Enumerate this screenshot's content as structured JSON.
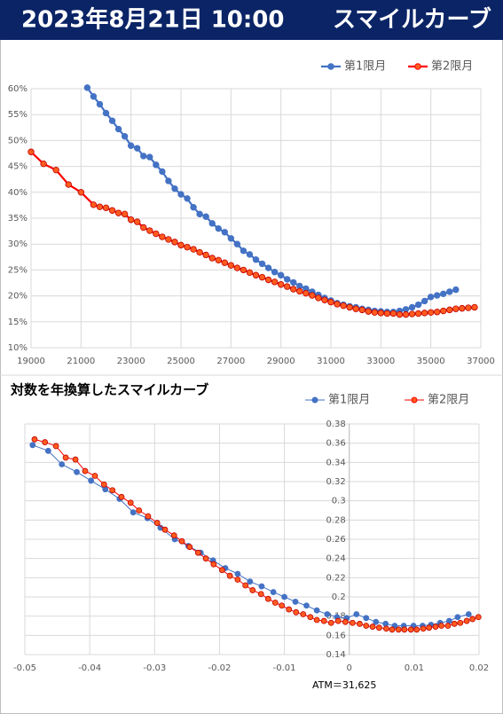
{
  "header": {
    "date": "2023年8月21日 10:00",
    "title": "スマイルカーブ"
  },
  "chart_data": [
    {
      "type": "line",
      "xlim": [
        19000,
        37000
      ],
      "xticks": [
        19000,
        21000,
        23000,
        25000,
        27000,
        29000,
        31000,
        33000,
        35000,
        37000
      ],
      "ylim": [
        10,
        60
      ],
      "yticks": [
        {
          "value": 10,
          "label": "10%"
        },
        {
          "value": 15,
          "label": "15%"
        },
        {
          "value": 20,
          "label": "20%"
        },
        {
          "value": 25,
          "label": "25%"
        },
        {
          "value": 30,
          "label": "30%"
        },
        {
          "value": 35,
          "label": "35%"
        },
        {
          "value": 40,
          "label": "40%"
        },
        {
          "value": 45,
          "label": "45%"
        },
        {
          "value": 50,
          "label": "50%"
        },
        {
          "value": 55,
          "label": "55%"
        },
        {
          "value": 60,
          "label": "60%"
        }
      ],
      "grid": true,
      "legend": "top-right",
      "series": [
        {
          "name": "第1限月",
          "color": "#4472c4",
          "marker_color": "#4472c4",
          "x": [
            21250,
            21500,
            21750,
            22000,
            22250,
            22500,
            22750,
            23000,
            23250,
            23500,
            23750,
            24000,
            24250,
            24500,
            24750,
            25000,
            25250,
            25500,
            25750,
            26000,
            26250,
            26500,
            26750,
            27000,
            27250,
            27500,
            27750,
            28000,
            28250,
            28500,
            28750,
            29000,
            29250,
            29500,
            29750,
            30000,
            30250,
            30500,
            30750,
            31000,
            31250,
            31500,
            31750,
            32000,
            32250,
            32500,
            32750,
            33000,
            33250,
            33500,
            33750,
            34000,
            34250,
            34500,
            34750,
            35000,
            35250,
            35500,
            35750,
            36000
          ],
          "values": [
            60.2,
            58.5,
            57,
            55.3,
            53.8,
            52.2,
            50.8,
            49,
            48.5,
            47,
            46.8,
            45.3,
            44,
            42.2,
            40.7,
            39.6,
            38.8,
            37.1,
            35.8,
            35.3,
            34,
            33,
            32.3,
            31.1,
            30,
            28.7,
            28,
            27,
            26.2,
            25.4,
            24.6,
            24,
            23.2,
            22.6,
            21.9,
            21.4,
            20.8,
            20.2,
            19.6,
            19.1,
            18.6,
            18.3,
            18,
            17.8,
            17.5,
            17.3,
            17.1,
            17,
            16.9,
            16.9,
            17.1,
            17.4,
            17.8,
            18.3,
            19,
            19.8,
            20.1,
            20.4,
            20.8,
            21.2
          ]
        },
        {
          "name": "第2限月",
          "color": "#ff0000",
          "marker_color": "#ff5b1f",
          "x": [
            19000,
            19500,
            20000,
            20500,
            21000,
            21500,
            21750,
            22000,
            22250,
            22500,
            22750,
            23000,
            23250,
            23500,
            23750,
            24000,
            24250,
            24500,
            24750,
            25000,
            25250,
            25500,
            25750,
            26000,
            26250,
            26500,
            26750,
            27000,
            27250,
            27500,
            27750,
            28000,
            28250,
            28500,
            28750,
            29000,
            29250,
            29500,
            29750,
            30000,
            30250,
            30500,
            30750,
            31000,
            31250,
            31500,
            31750,
            32000,
            32250,
            32500,
            32750,
            33000,
            33250,
            33500,
            33750,
            34000,
            34250,
            34500,
            34750,
            35000,
            35250,
            35500,
            35750,
            36000,
            36250,
            36500,
            36750
          ],
          "values": [
            47.8,
            45.5,
            44.3,
            41.5,
            40,
            37.6,
            37.2,
            37,
            36.5,
            36,
            35.8,
            34.7,
            34.3,
            33.2,
            32.6,
            32,
            31.4,
            30.9,
            30.4,
            29.8,
            29.4,
            29,
            28.4,
            27.9,
            27.3,
            26.9,
            26.4,
            25.9,
            25.4,
            25,
            24.5,
            24,
            23.6,
            23.1,
            22.7,
            22.2,
            21.8,
            21.3,
            20.9,
            20.5,
            20.1,
            19.6,
            19.2,
            18.8,
            18.4,
            18.1,
            17.8,
            17.5,
            17.3,
            17,
            16.8,
            16.7,
            16.6,
            16.6,
            16.4,
            16.4,
            16.5,
            16.6,
            16.7,
            16.8,
            16.9,
            17.1,
            17.3,
            17.5,
            17.6,
            17.7,
            17.8
          ]
        }
      ]
    },
    {
      "type": "line",
      "title": "対数を年換算したスマイルカーブ",
      "annotation": "ATM＝31,625",
      "xlim": [
        -0.05,
        0.02
      ],
      "xticks": [
        -0.05,
        -0.04,
        -0.03,
        -0.02,
        -0.01,
        0,
        0.01,
        0.02
      ],
      "ylim": [
        0.14,
        0.38
      ],
      "yticks": [
        0.14,
        0.16,
        0.18,
        0.2,
        0.22,
        0.24,
        0.26,
        0.28,
        0.3,
        0.32,
        0.34,
        0.36,
        0.38
      ],
      "grid": true,
      "legend": "top-right",
      "series": [
        {
          "name": "第1限月",
          "color": "#4472c4",
          "marker_color": "#4472c4",
          "x": [
            -0.0488,
            -0.0464,
            -0.0443,
            -0.042,
            -0.0398,
            -0.0376,
            -0.0354,
            -0.0333,
            -0.0311,
            -0.0291,
            -0.0269,
            -0.0248,
            -0.0229,
            -0.021,
            -0.0191,
            -0.0172,
            -0.0153,
            -0.0135,
            -0.0117,
            -0.01,
            -0.0083,
            -0.0066,
            -0.005,
            -0.0034,
            -0.0019,
            -0.0004,
            0.0011,
            0.0026,
            0.0041,
            0.0056,
            0.007,
            0.0084,
            0.0099,
            0.0113,
            0.0126,
            0.014,
            0.0154,
            0.0167,
            0.0184
          ],
          "values": [
            0.358,
            0.352,
            0.338,
            0.33,
            0.321,
            0.312,
            0.302,
            0.288,
            0.282,
            0.272,
            0.26,
            0.253,
            0.246,
            0.238,
            0.23,
            0.224,
            0.216,
            0.211,
            0.205,
            0.2,
            0.195,
            0.191,
            0.186,
            0.182,
            0.179,
            0.178,
            0.182,
            0.178,
            0.174,
            0.172,
            0.17,
            0.17,
            0.17,
            0.17,
            0.171,
            0.173,
            0.175,
            0.179,
            0.182
          ]
        },
        {
          "name": "第2限月",
          "color": "#ff0000",
          "marker_color": "#ff5b1f",
          "x": [
            -0.0485,
            -0.0469,
            -0.0452,
            -0.0437,
            -0.0422,
            -0.0407,
            -0.0392,
            -0.0378,
            -0.0365,
            -0.0351,
            -0.0337,
            -0.0324,
            -0.031,
            -0.0296,
            -0.0284,
            -0.027,
            -0.0258,
            -0.0246,
            -0.0233,
            -0.0221,
            -0.0209,
            -0.0196,
            -0.0184,
            -0.0172,
            -0.016,
            -0.0149,
            -0.0136,
            -0.0125,
            -0.0114,
            -0.0104,
            -0.0093,
            -0.0082,
            -0.0071,
            -0.006,
            -0.005,
            -0.0039,
            -0.0028,
            -0.0017,
            -0.0006,
            0.0005,
            0.0016,
            0.0026,
            0.0036,
            0.0046,
            0.0057,
            0.0066,
            0.0076,
            0.0085,
            0.0095,
            0.0104,
            0.0114,
            0.0123,
            0.0133,
            0.0142,
            0.0152,
            0.0162,
            0.0171,
            0.0181,
            0.019,
            0.0199
          ],
          "values": [
            0.364,
            0.361,
            0.357,
            0.345,
            0.343,
            0.331,
            0.326,
            0.317,
            0.311,
            0.304,
            0.298,
            0.29,
            0.284,
            0.277,
            0.27,
            0.264,
            0.258,
            0.252,
            0.246,
            0.24,
            0.234,
            0.228,
            0.222,
            0.218,
            0.212,
            0.207,
            0.203,
            0.198,
            0.194,
            0.191,
            0.187,
            0.184,
            0.182,
            0.179,
            0.176,
            0.175,
            0.173,
            0.175,
            0.174,
            0.173,
            0.172,
            0.17,
            0.169,
            0.168,
            0.167,
            0.166,
            0.166,
            0.166,
            0.166,
            0.166,
            0.167,
            0.168,
            0.169,
            0.17,
            0.17,
            0.172,
            0.173,
            0.175,
            0.177,
            0.179
          ]
        }
      ]
    }
  ]
}
